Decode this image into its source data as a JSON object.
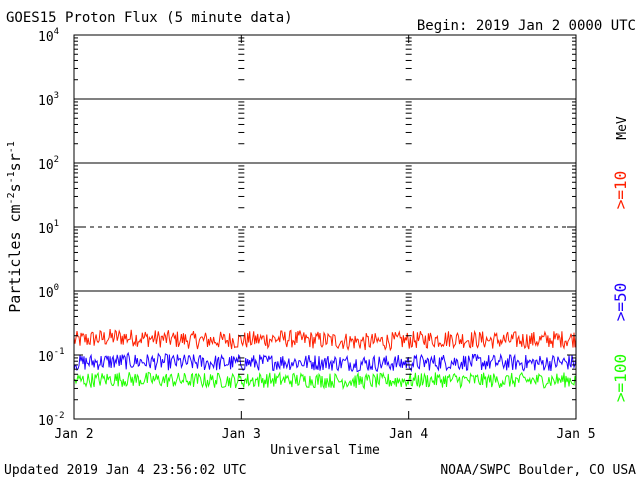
{
  "header": {
    "title": "GOES15 Proton Flux (5 minute data)",
    "begin": "Begin: 2019 Jan 2 0000 UTC"
  },
  "footer": {
    "updated": "Updated 2019 Jan  4 23:56:02 UTC",
    "credit": "NOAA/SWPC Boulder, CO USA"
  },
  "chart_data": {
    "type": "line",
    "title": "GOES15 Proton Flux (5 minute data)",
    "xlabel": "Universal Time",
    "ylabel": "Particles cm-2s-1sr-1",
    "y_scale": "log",
    "ylim": [
      0.01,
      10000
    ],
    "y_ticks": [
      {
        "value": 0.01,
        "base": "10",
        "exp": "-2"
      },
      {
        "value": 0.1,
        "base": "10",
        "exp": "-1"
      },
      {
        "value": 1,
        "base": "10",
        "exp": "0"
      },
      {
        "value": 10,
        "base": "10",
        "exp": "1"
      },
      {
        "value": 100,
        "base": "10",
        "exp": "2"
      },
      {
        "value": 1000,
        "base": "10",
        "exp": "3"
      },
      {
        "value": 10000,
        "base": "10",
        "exp": "4"
      }
    ],
    "x_ticks": [
      "Jan 2",
      "Jan 3",
      "Jan 4",
      "Jan 5"
    ],
    "xlim": [
      "2019-01-02",
      "2019-01-05"
    ],
    "reference_lines": [
      {
        "value": 10,
        "style": "dashed"
      },
      {
        "value": 1,
        "style": "solid"
      },
      {
        "value": 100,
        "style": "solid"
      },
      {
        "value": 1000,
        "style": "solid"
      }
    ],
    "unit_label": "MeV",
    "series": [
      {
        "name": ">=10",
        "color": "#ff2000",
        "x_days": [
          0,
          0.25,
          0.5,
          0.75,
          1.0,
          1.25,
          1.5,
          1.75,
          2.0,
          2.25,
          2.5,
          2.75,
          3.0
        ],
        "values": [
          0.17,
          0.19,
          0.18,
          0.17,
          0.17,
          0.18,
          0.17,
          0.16,
          0.17,
          0.18,
          0.17,
          0.17,
          0.18
        ]
      },
      {
        "name": ">=50",
        "color": "#2000ff",
        "x_days": [
          0,
          0.25,
          0.5,
          0.75,
          1.0,
          1.25,
          1.5,
          1.75,
          2.0,
          2.25,
          2.5,
          2.75,
          3.0
        ],
        "values": [
          0.075,
          0.08,
          0.078,
          0.076,
          0.075,
          0.078,
          0.076,
          0.074,
          0.075,
          0.078,
          0.076,
          0.075,
          0.077
        ]
      },
      {
        "name": ">=100",
        "color": "#20ff00",
        "x_days": [
          0,
          0.25,
          0.5,
          0.75,
          1.0,
          1.25,
          1.5,
          1.75,
          2.0,
          2.25,
          2.5,
          2.75,
          3.0
        ],
        "values": [
          0.04,
          0.042,
          0.041,
          0.04,
          0.04,
          0.041,
          0.04,
          0.039,
          0.04,
          0.041,
          0.04,
          0.04,
          0.041
        ]
      }
    ]
  }
}
